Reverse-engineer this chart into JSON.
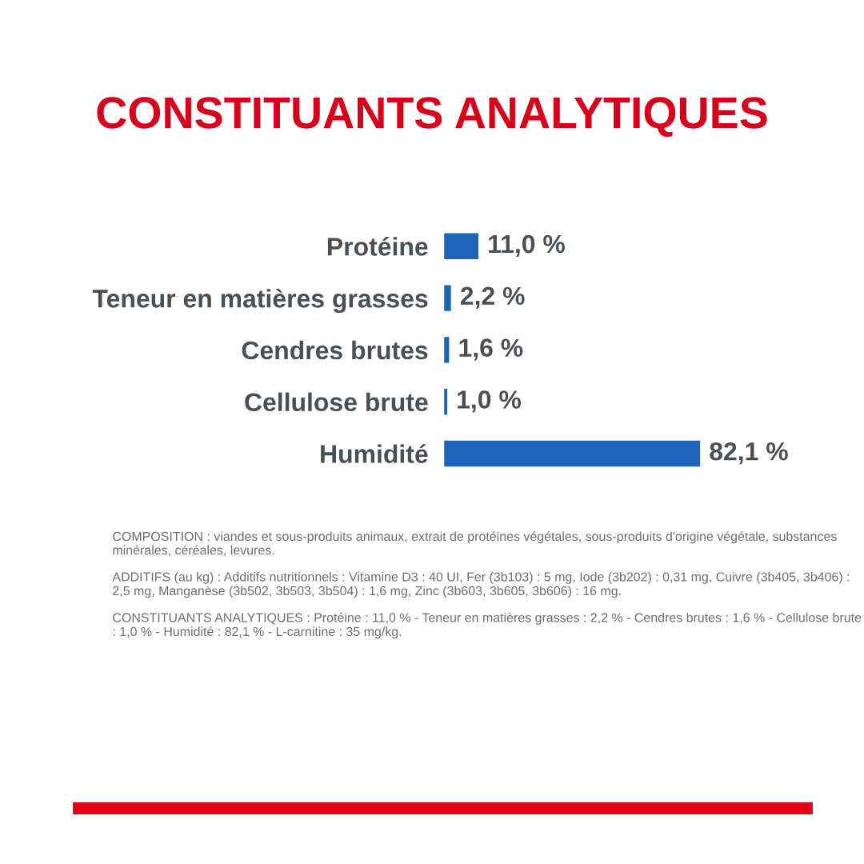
{
  "chart_data": {
    "type": "bar",
    "orientation": "horizontal",
    "title": "CONSTITUANTS ANALYTIQUES",
    "categories": [
      "Protéine",
      "Teneur en matières grasses",
      "Cendres brutes",
      "Cellulose brute",
      "Humidité"
    ],
    "values": [
      11.0,
      2.2,
      1.6,
      1.0,
      82.1
    ],
    "value_labels": [
      "11,0 %",
      "2,2 %",
      "1,6 %",
      "1,0 %",
      "82,1 %"
    ],
    "color": "#1f63b8",
    "grid": false,
    "legend": false,
    "annotations": [
      "COMPOSITION : viandes et sous-produits animaux, extrait de protéines végétales, sous-produits d'origine végétale, substances minérales, céréales, levures.",
      "ADDITIFS (au kg) : Additifs nutritionnels : Vitamine D3 : 40 UI, Fer (3b103) : 5 mg, Iode (3b202) : 0,31 mg, Cuivre (3b405, 3b406) : 2,5 mg, Manganèse (3b502, 3b503, 3b504) : 1,6 mg, Zinc (3b603, 3b605, 3b606) : 16 mg.",
      "CONSTITUANTS ANALYTIQUES : Protéine : 11,0 % - Teneur en matières grasses : 2,2 % - Cendres brutes : 1,6 % - Cellulose brute : 1,0 % - Humidité : 82,1 % - L-carnitine : 35 mg/kg."
    ]
  }
}
